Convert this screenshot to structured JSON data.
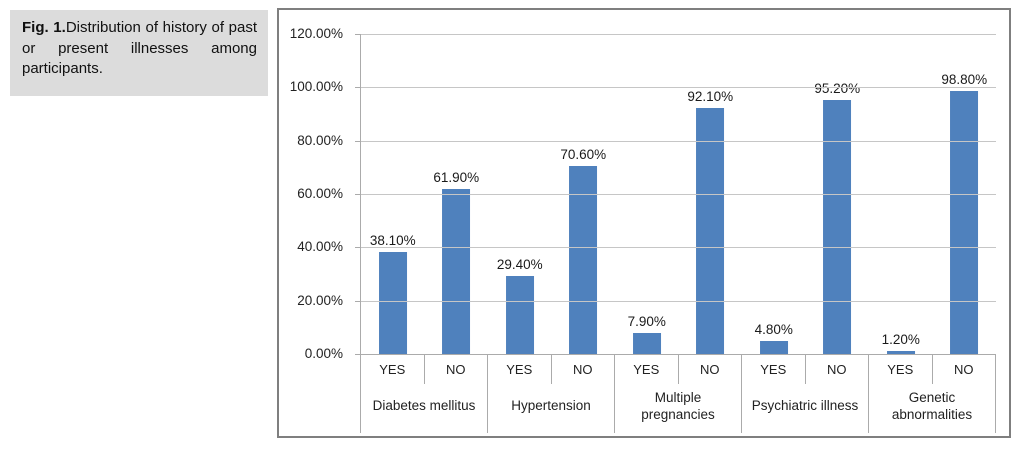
{
  "figure": {
    "caption_bold": "Fig. 1.",
    "caption_text": "Distribution of history of past or present illnesses among participants."
  },
  "chart_data": {
    "type": "bar",
    "title": "",
    "bar_color": "#4f81bd",
    "ylim": [
      0,
      120
    ],
    "grid": true,
    "legend": "none",
    "y_ticks": [
      {
        "value": 120,
        "label": "120.00%"
      },
      {
        "value": 100,
        "label": "100.00%"
      },
      {
        "value": 80,
        "label": "80.00%"
      },
      {
        "value": 60,
        "label": "60.00%"
      },
      {
        "value": 40,
        "label": "40.00%"
      },
      {
        "value": 20,
        "label": "20.00%"
      },
      {
        "value": 0,
        "label": "0.00%"
      }
    ],
    "sub_categories": [
      "YES",
      "NO"
    ],
    "groups": [
      {
        "label": "Diabetes mellitus",
        "bars": [
          {
            "sub": "YES",
            "value": 38.1,
            "label": "38.10%"
          },
          {
            "sub": "NO",
            "value": 61.9,
            "label": "61.90%"
          }
        ]
      },
      {
        "label": "Hypertension",
        "bars": [
          {
            "sub": "YES",
            "value": 29.4,
            "label": "29.40%"
          },
          {
            "sub": "NO",
            "value": 70.6,
            "label": "70.60%"
          }
        ]
      },
      {
        "label": "Multiple pregnancies",
        "bars": [
          {
            "sub": "YES",
            "value": 7.9,
            "label": "7.90%"
          },
          {
            "sub": "NO",
            "value": 92.1,
            "label": "92.10%"
          }
        ]
      },
      {
        "label": "Psychiatric illness",
        "bars": [
          {
            "sub": "YES",
            "value": 4.8,
            "label": "4.80%"
          },
          {
            "sub": "NO",
            "value": 95.2,
            "label": "95.20%"
          }
        ]
      },
      {
        "label": "Genetic abnormalities",
        "bars": [
          {
            "sub": "YES",
            "value": 1.2,
            "label": "1.20%"
          },
          {
            "sub": "NO",
            "value": 98.8,
            "label": "98.80%"
          }
        ]
      }
    ]
  }
}
